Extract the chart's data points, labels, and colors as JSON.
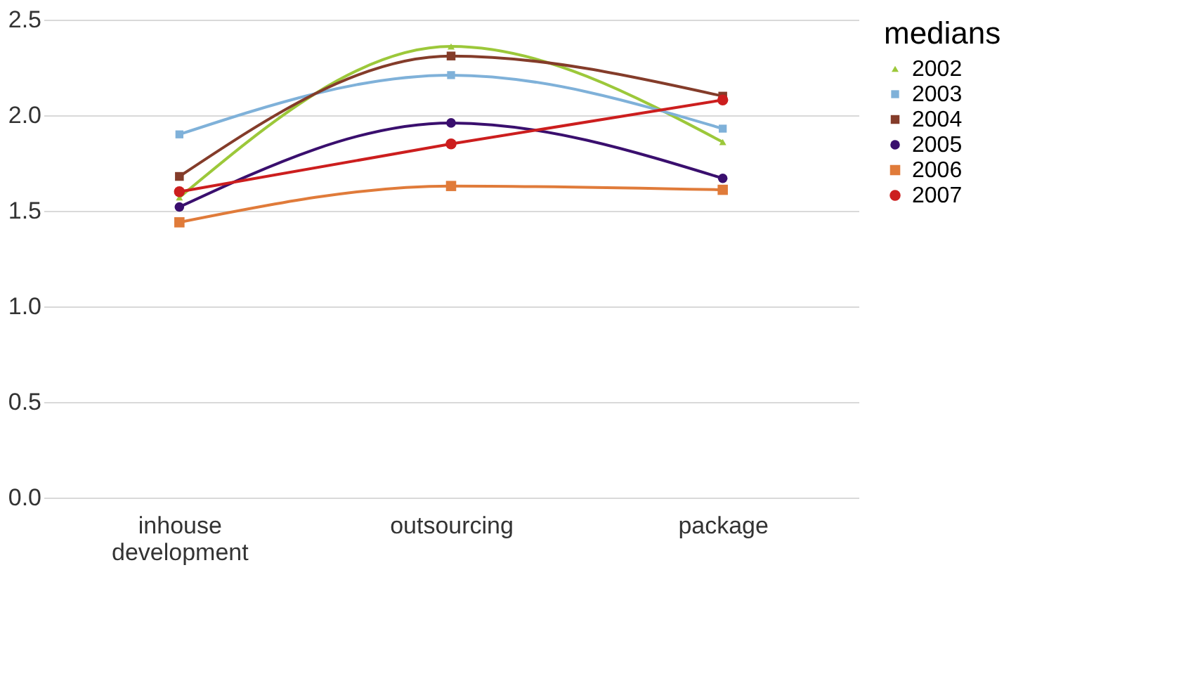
{
  "chart_data": {
    "type": "line",
    "categories": [
      "inhouse development",
      "outsourcing",
      "package"
    ],
    "legend_title": "medians",
    "series": [
      {
        "name": "2002",
        "color": "#9cc83a",
        "marker": "triangle",
        "values": [
          1.57,
          2.36,
          1.86
        ]
      },
      {
        "name": "2003",
        "color": "#7fb1d9",
        "marker": "square",
        "values": [
          1.9,
          2.21,
          1.93
        ]
      },
      {
        "name": "2004",
        "color": "#843c2a",
        "marker": "square",
        "values": [
          1.68,
          2.31,
          2.1
        ]
      },
      {
        "name": "2005",
        "color": "#3a0f6e",
        "marker": "circle",
        "values": [
          1.52,
          1.96,
          1.67
        ]
      },
      {
        "name": "2006",
        "color": "#e07b3a",
        "marker": "square",
        "values": [
          1.44,
          1.63,
          1.61
        ]
      },
      {
        "name": "2007",
        "color": "#cc1e1e",
        "marker": "circle",
        "values": [
          1.6,
          1.85,
          2.08
        ]
      }
    ],
    "ylim": [
      0,
      2.5
    ],
    "yticks": [
      {
        "value": 0,
        "label": "0.0"
      },
      0.5,
      {
        "value": 1,
        "label": "1.0"
      },
      1.5,
      {
        "value": 2,
        "label": "2.0"
      },
      2.5
    ],
    "grid": "y",
    "legend": "right"
  }
}
